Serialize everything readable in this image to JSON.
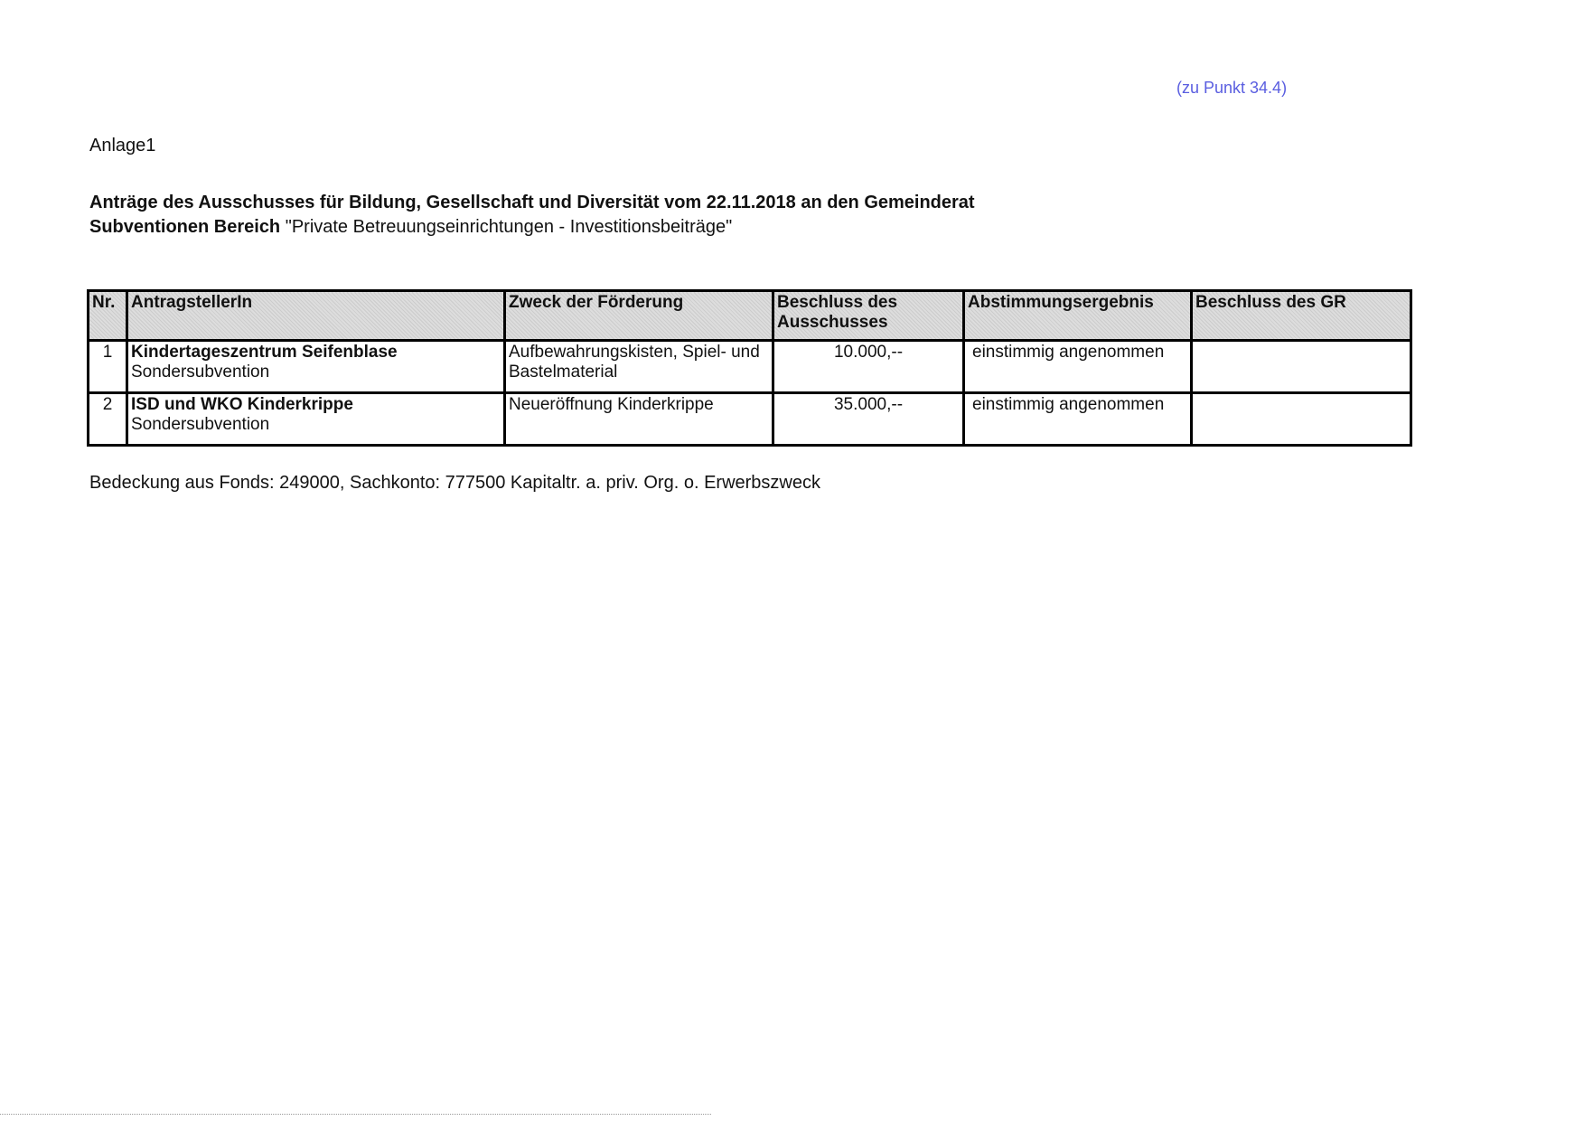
{
  "reference": "(zu Punkt 34.4)",
  "attachment_label": "Anlage1",
  "title_line1": "Anträge des Ausschusses für Bildung, Gesellschaft und Diversität vom 22.11.2018 an den Gemeinderat",
  "title_line2_bold": "Subventionen Bereich",
  "title_line2_rest": " \"Private Betreuungseinrichtungen - Investitionsbeiträge\"",
  "table": {
    "headers": [
      "Nr.",
      "AntragstellerIn",
      "Zweck der Förderung",
      "Beschluss des Ausschusses",
      "Abstimmungsergebnis",
      "Beschluss des GR"
    ],
    "rows": [
      {
        "nr": "1",
        "applicant": "Kindertageszentrum Seifenblase",
        "type": "Sondersubvention",
        "purpose": "Aufbewahrungskisten, Spiel- und Bastelmaterial",
        "amount": "10.000,--",
        "result": "einstimmig angenommen",
        "gr": ""
      },
      {
        "nr": "2",
        "applicant": "ISD und WKO Kinderkrippe",
        "type": "Sondersubvention",
        "purpose": "Neueröffnung Kinderkrippe",
        "amount": "35.000,--",
        "result": "einstimmig angenommen",
        "gr": ""
      }
    ]
  },
  "footer": "Bedeckung aus Fonds: 249000, Sachkonto: 777500 Kapitaltr. a. priv. Org. o. Erwerbszweck",
  "colors": {
    "reference": "#5a5ee0"
  }
}
